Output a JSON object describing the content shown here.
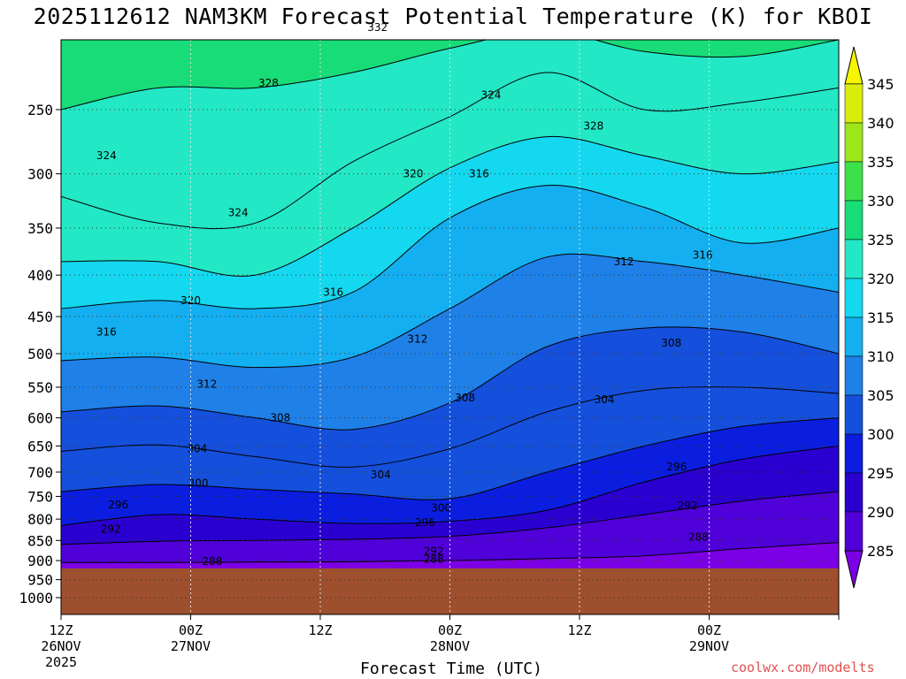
{
  "title": "2025112612 NAM3KM Forecast Potential Temperature (K) for KBOI",
  "credit": "coolwx.com/modelts",
  "chart_data": {
    "type": "heatmap",
    "title": "2025112612 NAM3KM Forecast Potential Temperature (K) for KBOI",
    "xlabel": "Forecast Time (UTC)",
    "ylabel": "",
    "y_scale": "log-pressure (hPa), decreasing upward",
    "ylim_hpa": [
      1040,
      200
    ],
    "x_hours": [
      0,
      72
    ],
    "x_ticks": [
      {
        "hour": 0,
        "line1": "12Z",
        "line2": "26NOV",
        "line3": "2025"
      },
      {
        "hour": 12,
        "line1": "00Z",
        "line2": "27NOV",
        "line3": ""
      },
      {
        "hour": 24,
        "line1": "12Z",
        "line2": "",
        "line3": ""
      },
      {
        "hour": 36,
        "line1": "00Z",
        "line2": "28NOV",
        "line3": ""
      },
      {
        "hour": 48,
        "line1": "12Z",
        "line2": "",
        "line3": ""
      },
      {
        "hour": 60,
        "line1": "00Z",
        "line2": "29NOV",
        "line3": ""
      }
    ],
    "y_ticks": [
      "250",
      "300",
      "350",
      "400",
      "450",
      "500",
      "550",
      "600",
      "650",
      "700",
      "750",
      "800",
      "850",
      "900",
      "950",
      "1000"
    ],
    "surface_pressure_hpa": 920,
    "contour_interval_k": 2,
    "colorbar": {
      "levels": [
        285,
        290,
        295,
        300,
        305,
        310,
        315,
        320,
        325,
        330,
        335,
        340,
        345
      ],
      "labels": [
        "285",
        "290",
        "295",
        "300",
        "305",
        "310",
        "315",
        "320",
        "325",
        "330",
        "335",
        "340",
        "345"
      ],
      "colors": [
        "#7b00e6",
        "#5000d8",
        "#2a00d0",
        "#0b1ee0",
        "#1450dc",
        "#1f80e8",
        "#14aff0",
        "#14d8ef",
        "#22e8c6",
        "#18dc78",
        "#3ce04a",
        "#9ee61a",
        "#d8ee0a",
        "#f6f600"
      ]
    },
    "series": [
      {
        "theta": 288,
        "pressure_hpa": [
          905,
          905,
          904,
          903,
          900,
          895,
          888,
          870,
          855
        ]
      },
      {
        "theta": 292,
        "pressure_hpa": [
          860,
          852,
          850,
          847,
          840,
          820,
          790,
          760,
          740
        ]
      },
      {
        "theta": 296,
        "pressure_hpa": [
          815,
          790,
          800,
          810,
          805,
          780,
          720,
          675,
          650
        ]
      },
      {
        "theta": 300,
        "pressure_hpa": [
          740,
          725,
          735,
          745,
          755,
          700,
          650,
          615,
          600
        ]
      },
      {
        "theta": 304,
        "pressure_hpa": [
          660,
          648,
          670,
          690,
          655,
          590,
          555,
          550,
          560
        ]
      },
      {
        "theta": 308,
        "pressure_hpa": [
          590,
          580,
          600,
          620,
          575,
          490,
          465,
          470,
          500
        ]
      },
      {
        "theta": 312,
        "pressure_hpa": [
          510,
          505,
          520,
          505,
          440,
          380,
          385,
          400,
          420
        ]
      },
      {
        "theta": 316,
        "pressure_hpa": [
          440,
          430,
          440,
          420,
          340,
          310,
          330,
          365,
          350
        ]
      },
      {
        "theta": 320,
        "pressure_hpa": [
          385,
          385,
          400,
          350,
          295,
          270,
          285,
          300,
          290
        ]
      },
      {
        "theta": 324,
        "pressure_hpa": [
          320,
          345,
          345,
          290,
          255,
          225,
          250,
          245,
          235
        ]
      },
      {
        "theta": 328,
        "pressure_hpa": [
          250,
          235,
          235,
          225,
          210,
          200,
          212,
          215,
          205
        ]
      },
      {
        "theta": 332,
        "pressure_hpa": [
          200,
          200,
          200,
          200,
          200,
          180,
          175,
          175,
          170
        ]
      }
    ],
    "series_hours": [
      0,
      9,
      18,
      27,
      36,
      45,
      54,
      63,
      72
    ],
    "contour_labels": [
      {
        "text": "288",
        "hour": 14,
        "p": 902
      },
      {
        "text": "288",
        "hour": 34.5,
        "p": 896
      },
      {
        "text": "288",
        "hour": 59,
        "p": 842
      },
      {
        "text": "292",
        "hour": 4.6,
        "p": 823
      },
      {
        "text": "292",
        "hour": 34.5,
        "p": 876
      },
      {
        "text": "292",
        "hour": 58,
        "p": 770
      },
      {
        "text": "296",
        "hour": 5.3,
        "p": 768
      },
      {
        "text": "296",
        "hour": 33.7,
        "p": 808
      },
      {
        "text": "296",
        "hour": 57,
        "p": 690
      },
      {
        "text": "300",
        "hour": 12.7,
        "p": 722
      },
      {
        "text": "300",
        "hour": 35.2,
        "p": 775
      },
      {
        "text": "304",
        "hour": 12.6,
        "p": 655
      },
      {
        "text": "304",
        "hour": 29.6,
        "p": 705
      },
      {
        "text": "304",
        "hour": 50.3,
        "p": 570
      },
      {
        "text": "308",
        "hour": 20.3,
        "p": 600
      },
      {
        "text": "308",
        "hour": 37.4,
        "p": 567
      },
      {
        "text": "308",
        "hour": 56.5,
        "p": 485
      },
      {
        "text": "312",
        "hour": 13.5,
        "p": 545
      },
      {
        "text": "312",
        "hour": 33,
        "p": 480
      },
      {
        "text": "312",
        "hour": 52.1,
        "p": 385
      },
      {
        "text": "316",
        "hour": 4.2,
        "p": 470
      },
      {
        "text": "316",
        "hour": 25.2,
        "p": 420
      },
      {
        "text": "316",
        "hour": 38.7,
        "p": 300
      },
      {
        "text": "316",
        "hour": 59.4,
        "p": 378
      },
      {
        "text": "320",
        "hour": 12,
        "p": 430
      },
      {
        "text": "320",
        "hour": 32.6,
        "p": 300
      },
      {
        "text": "324",
        "hour": 4.2,
        "p": 285
      },
      {
        "text": "324",
        "hour": 16.4,
        "p": 335
      },
      {
        "text": "324",
        "hour": 39.8,
        "p": 240
      },
      {
        "text": "328",
        "hour": 19.2,
        "p": 232
      },
      {
        "text": "328",
        "hour": 49.3,
        "p": 262
      },
      {
        "text": "332",
        "hour": 29.3,
        "p": 198
      }
    ]
  }
}
